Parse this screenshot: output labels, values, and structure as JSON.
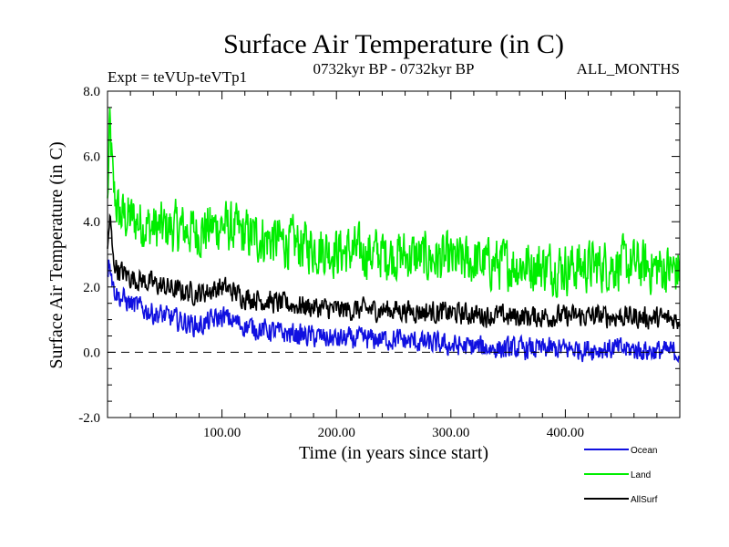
{
  "chart_data": {
    "type": "line",
    "title": "Surface Air Temperature (in C)",
    "subtitle_left": "Expt = teVUp-teVTp1",
    "subtitle_center": "0732kyr BP - 0732kyr BP",
    "subtitle_right": "ALL_MONTHS",
    "xlabel": "Time (in years since start)",
    "ylabel": "Surface Air Temperature (in C)",
    "xlim": [
      0,
      500
    ],
    "ylim": [
      -2,
      8
    ],
    "x_ticks": [
      100,
      200,
      300,
      400
    ],
    "x_tick_labels": [
      "100.00",
      "200.00",
      "300.00",
      "400.00"
    ],
    "y_ticks": [
      -2,
      0,
      2,
      4,
      6,
      8
    ],
    "y_tick_labels": [
      "-2.0",
      "0.0",
      "2.0",
      "4.0",
      "6.0",
      "8.0"
    ],
    "zero_line": 0,
    "series": [
      {
        "name": "Land",
        "color": "#00ee00",
        "x": [
          0,
          2,
          5,
          10,
          20,
          40,
          60,
          80,
          100,
          120,
          150,
          200,
          250,
          300,
          350,
          400,
          450,
          500
        ],
        "values": [
          4.5,
          7.0,
          5.0,
          4.2,
          4.1,
          3.8,
          3.8,
          3.7,
          3.9,
          3.6,
          3.4,
          3.1,
          3.0,
          2.8,
          2.7,
          2.6,
          2.7,
          2.5
        ],
        "noise": 0.7
      },
      {
        "name": "AllSurf",
        "color": "#000000",
        "x": [
          0,
          2,
          5,
          10,
          20,
          40,
          60,
          80,
          100,
          120,
          150,
          200,
          250,
          300,
          350,
          400,
          450,
          500
        ],
        "values": [
          3.0,
          4.2,
          2.8,
          2.5,
          2.3,
          2.1,
          1.9,
          1.8,
          2.0,
          1.7,
          1.5,
          1.3,
          1.3,
          1.2,
          1.1,
          1.1,
          1.1,
          1.0
        ],
        "noise": 0.3
      },
      {
        "name": "Ocean",
        "color": "#1010e0",
        "x": [
          0,
          2,
          5,
          10,
          20,
          40,
          60,
          80,
          100,
          120,
          150,
          200,
          250,
          300,
          350,
          400,
          450,
          500
        ],
        "values": [
          2.5,
          2.9,
          2.0,
          1.7,
          1.5,
          1.2,
          1.0,
          0.8,
          1.1,
          0.8,
          0.6,
          0.4,
          0.4,
          0.2,
          0.1,
          0.1,
          0.1,
          0.0
        ],
        "noise": 0.3
      }
    ],
    "legend": [
      {
        "name": "Ocean",
        "color": "#1010e0"
      },
      {
        "name": "Land",
        "color": "#00ee00"
      },
      {
        "name": "AllSurf",
        "color": "#000000"
      }
    ],
    "legend_position": "bottom-right"
  }
}
